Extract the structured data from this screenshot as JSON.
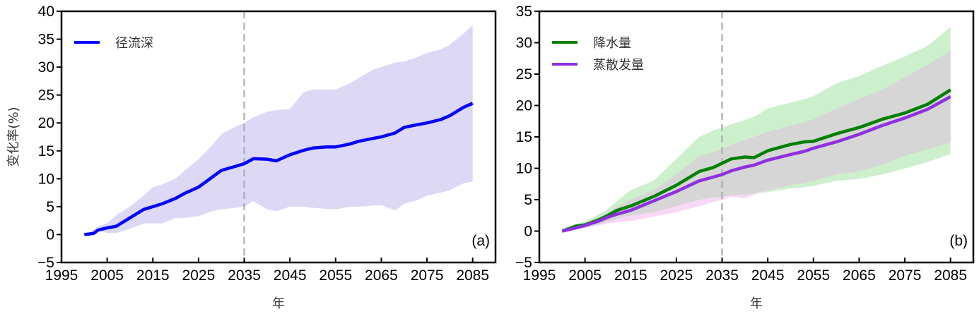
{
  "chart_data": [
    {
      "type": "line",
      "panel_label": "(a)",
      "xlabel": "年",
      "ylabel": "变化率(%)",
      "xlim": [
        1995,
        2090
      ],
      "ylim": [
        -5,
        40
      ],
      "xticks": [
        1995,
        2005,
        2015,
        2025,
        2035,
        2045,
        2055,
        2065,
        2075,
        2085
      ],
      "yticks": [
        -5,
        0,
        5,
        10,
        15,
        20,
        25,
        30,
        35,
        40
      ],
      "vline": 2035,
      "legend_position": "top-left",
      "series": [
        {
          "name": "径流深",
          "color": "#0000ff",
          "band_color": "#dcd8f6",
          "x": [
            2000,
            2002,
            2003,
            2005,
            2007,
            2010,
            2013,
            2015,
            2017,
            2020,
            2022,
            2025,
            2028,
            2030,
            2033,
            2035,
            2037,
            2040,
            2042,
            2045,
            2048,
            2050,
            2053,
            2055,
            2058,
            2060,
            2063,
            2065,
            2068,
            2070,
            2073,
            2075,
            2078,
            2080,
            2083,
            2085
          ],
          "values": [
            0,
            0.2,
            0.8,
            1.2,
            1.5,
            3.0,
            4.5,
            5.0,
            5.5,
            6.5,
            7.4,
            8.5,
            10.3,
            11.5,
            12.2,
            12.7,
            13.6,
            13.5,
            13.2,
            14.3,
            15.1,
            15.5,
            15.7,
            15.7,
            16.2,
            16.7,
            17.2,
            17.5,
            18.2,
            19.2,
            19.7,
            20.0,
            20.6,
            21.3,
            22.8,
            23.5
          ],
          "upper": [
            0,
            0.8,
            1.5,
            2.0,
            3.5,
            5.0,
            7.0,
            8.5,
            9.0,
            10.0,
            11.5,
            13.5,
            16.0,
            18.0,
            19.3,
            20.0,
            21.0,
            22.0,
            22.3,
            22.5,
            25.5,
            26.0,
            26.0,
            26.0,
            27.0,
            28.0,
            29.5,
            30.0,
            30.8,
            31.0,
            31.8,
            32.5,
            33.2,
            34.0,
            36.0,
            37.5
          ],
          "lower": [
            0,
            0.2,
            0.7,
            0.3,
            0.3,
            1.0,
            2.0,
            2.0,
            2.0,
            3.0,
            3.0,
            3.3,
            4.2,
            4.5,
            4.8,
            5.0,
            6.0,
            4.5,
            4.2,
            5.0,
            5.0,
            4.8,
            4.6,
            4.5,
            5.0,
            5.0,
            5.2,
            5.3,
            4.3,
            5.5,
            6.2,
            7.0,
            7.5,
            8.0,
            9.2,
            9.5
          ]
        }
      ]
    },
    {
      "type": "line",
      "panel_label": "(b)",
      "xlabel": "年",
      "ylabel": "",
      "xlim": [
        1995,
        2090
      ],
      "ylim": [
        -5,
        35
      ],
      "xticks": [
        1995,
        2005,
        2015,
        2025,
        2035,
        2045,
        2055,
        2065,
        2075,
        2085
      ],
      "yticks": [
        -5,
        0,
        5,
        10,
        15,
        20,
        25,
        30,
        35
      ],
      "vline": 2035,
      "legend_position": "top-left",
      "overlap_color": "#d5d6d5",
      "series": [
        {
          "name": "降水量",
          "color": "#008000",
          "band_color": "#ccefcc",
          "x": [
            2000,
            2003,
            2005,
            2008,
            2010,
            2012,
            2015,
            2020,
            2025,
            2030,
            2033,
            2035,
            2037,
            2040,
            2042,
            2045,
            2050,
            2053,
            2055,
            2060,
            2065,
            2070,
            2075,
            2080,
            2085
          ],
          "values": [
            0,
            0.8,
            1.0,
            1.8,
            2.5,
            3.3,
            4.0,
            5.5,
            7.3,
            9.5,
            10.1,
            10.8,
            11.5,
            11.8,
            11.7,
            12.8,
            13.8,
            14.2,
            14.3,
            15.5,
            16.5,
            17.8,
            18.8,
            20.2,
            22.5
          ],
          "upper": [
            0,
            1.1,
            1.5,
            2.7,
            3.5,
            4.8,
            6.5,
            8.0,
            11.5,
            15.0,
            16.0,
            16.5,
            17.0,
            17.7,
            18.2,
            19.5,
            20.5,
            21.0,
            21.5,
            23.5,
            24.7,
            26.3,
            27.8,
            29.5,
            32.5
          ],
          "lower": [
            0,
            0.4,
            0.5,
            1.1,
            1.5,
            2.0,
            2.5,
            3.0,
            4.0,
            5.0,
            5.3,
            5.5,
            5.7,
            5.8,
            6.0,
            6.2,
            6.8,
            7.0,
            7.2,
            8.0,
            8.3,
            9.0,
            10.0,
            11.0,
            12.3
          ]
        },
        {
          "name": "蒸散发量",
          "color": "#9030e0",
          "band_color": "#f7d8f6",
          "x": [
            2000,
            2003,
            2005,
            2008,
            2010,
            2012,
            2015,
            2020,
            2025,
            2030,
            2033,
            2035,
            2037,
            2040,
            2042,
            2045,
            2050,
            2053,
            2055,
            2060,
            2065,
            2070,
            2075,
            2080,
            2085
          ],
          "values": [
            0,
            0.5,
            0.9,
            1.6,
            2.2,
            2.7,
            3.3,
            4.8,
            6.3,
            8.0,
            8.6,
            9.0,
            9.6,
            10.2,
            10.5,
            11.3,
            12.2,
            12.7,
            13.2,
            14.2,
            15.4,
            16.8,
            18.0,
            19.4,
            21.4
          ],
          "upper": [
            0,
            0.8,
            1.2,
            2.2,
            3.0,
            3.9,
            5.0,
            6.5,
            9.0,
            12.0,
            12.6,
            13.0,
            13.7,
            14.5,
            15.0,
            15.8,
            16.8,
            17.3,
            17.8,
            19.5,
            21.0,
            22.5,
            24.5,
            26.5,
            28.7
          ],
          "lower": [
            0,
            0.3,
            0.5,
            0.9,
            1.2,
            1.4,
            1.6,
            2.3,
            3.0,
            4.0,
            4.6,
            5.0,
            5.5,
            5.2,
            5.8,
            6.5,
            7.3,
            7.7,
            8.0,
            9.0,
            9.5,
            10.5,
            12.0,
            13.0,
            14.1
          ]
        }
      ]
    }
  ]
}
